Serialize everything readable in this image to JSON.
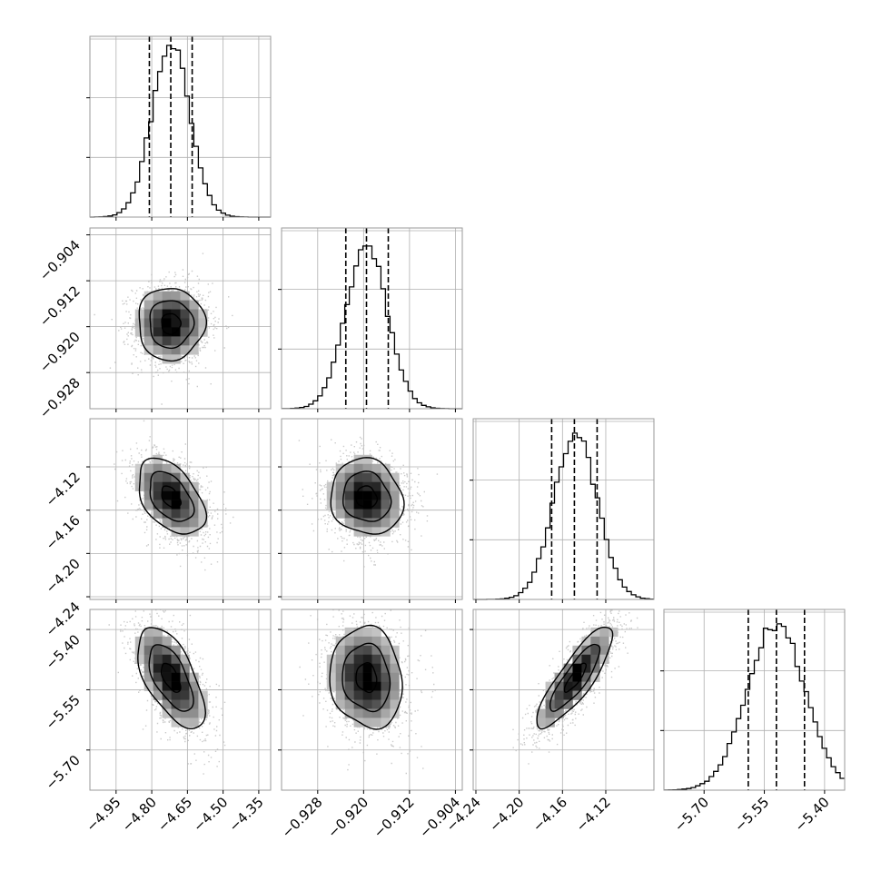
{
  "chart_data": {
    "type": "corner",
    "title": "",
    "params": [
      {
        "name": "",
        "range": [
          -5.06,
          -4.3
        ],
        "ticks": [
          "−4.95",
          "−4.80",
          "−4.65",
          "−4.50",
          "−4.35"
        ],
        "tick_values": [
          -4.95,
          -4.8,
          -4.65,
          -4.5,
          -4.35
        ],
        "mean": -4.72,
        "sigma": 0.08,
        "quantiles": [
          -4.81,
          -4.72,
          -4.63
        ],
        "hist_peak": 0.95
      },
      {
        "name": "",
        "range": [
          -0.9343,
          -0.9028
        ],
        "ticks": [
          "−0.928",
          "−0.920",
          "−0.912",
          "−0.904"
        ],
        "tick_values": [
          -0.928,
          -0.92,
          -0.912,
          -0.904
        ],
        "mean": -0.9195,
        "sigma": 0.0036,
        "quantiles": [
          -0.9231,
          -0.9195,
          -0.9157
        ],
        "hist_peak": 0.9
      },
      {
        "name": "",
        "range": [
          -4.2425,
          -4.0755
        ],
        "ticks": [
          "−4.24",
          "−4.20",
          "−4.16",
          "−4.12"
        ],
        "tick_values": [
          -4.24,
          -4.2,
          -4.16,
          -4.12
        ],
        "mean": -4.148,
        "sigma": 0.02,
        "quantiles": [
          -4.17,
          -4.149,
          -4.128
        ],
        "hist_peak": 0.92
      },
      {
        "name": "",
        "range": [
          -5.8,
          -5.35
        ],
        "ticks": [
          "−5.70",
          "−5.55",
          "−5.40"
        ],
        "tick_values": [
          -5.7,
          -5.55,
          -5.4
        ],
        "mean": -5.52,
        "sigma": 0.072,
        "quantiles": [
          -5.59,
          -5.52,
          -5.45
        ],
        "hist_peak": 0.92
      }
    ],
    "correlations": [
      [
        1.0,
        0.0,
        -0.45,
        -0.6
      ],
      [
        0.0,
        1.0,
        -0.1,
        -0.1
      ],
      [
        -0.45,
        -0.1,
        1.0,
        0.85
      ],
      [
        -0.6,
        -0.1,
        0.85,
        1.0
      ]
    ],
    "y_tick_labels": {
      "row_1": [
        "−0.904",
        "−0.912",
        "−0.920",
        "−0.928"
      ],
      "row_2": [
        "−4.12",
        "−4.16",
        "−4.20",
        "−4.24"
      ],
      "row_3": [
        "−5.40",
        "−5.55",
        "−5.70"
      ]
    },
    "grid": true,
    "contour_levels": 3,
    "quantile_line_style": "dashed",
    "colors": {
      "line": "#000000",
      "points": "#bdbdbd",
      "grid": "#b0b0b0",
      "frame": "#9a9a9a"
    }
  }
}
